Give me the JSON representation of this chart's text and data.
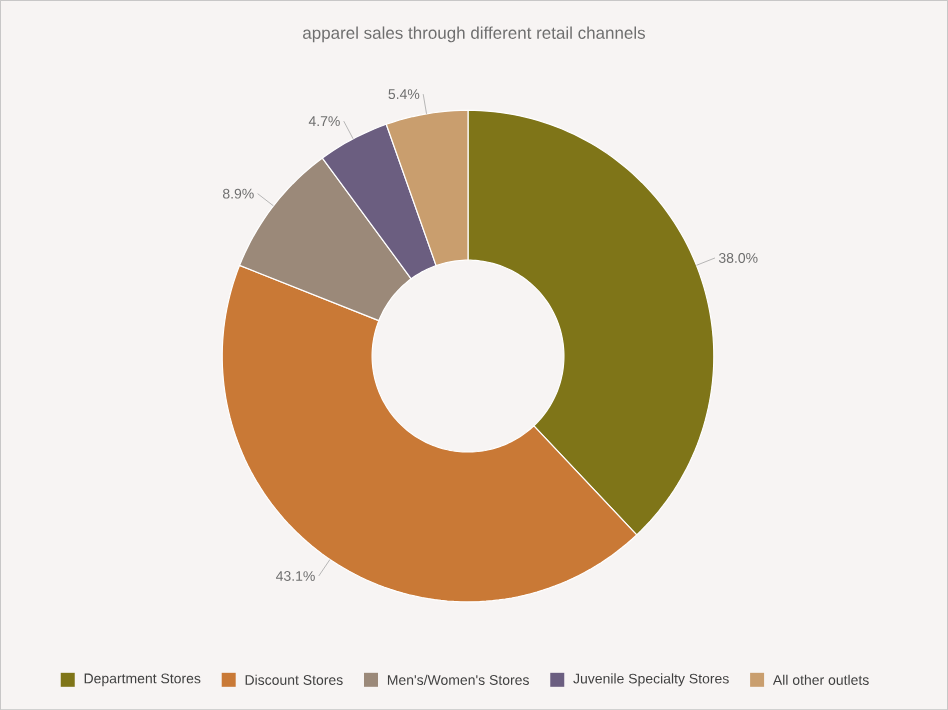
{
  "chart_data": {
    "type": "donut",
    "title": "apparel sales through different retail channels",
    "categories": [
      "Department Stores",
      "Discount Stores",
      "Men's/Women's Stores",
      "Juvenile Specialty Stores",
      "All other outlets"
    ],
    "values": [
      38.0,
      43.1,
      8.9,
      4.7,
      5.4
    ],
    "value_labels": [
      "38.0%",
      "43.1%",
      "8.9%",
      "4.7%",
      "5.4%"
    ],
    "colors": [
      "#7f7518",
      "#c97936",
      "#9b8979",
      "#6b5e80",
      "#c99e6e"
    ],
    "legend": "bottom"
  }
}
